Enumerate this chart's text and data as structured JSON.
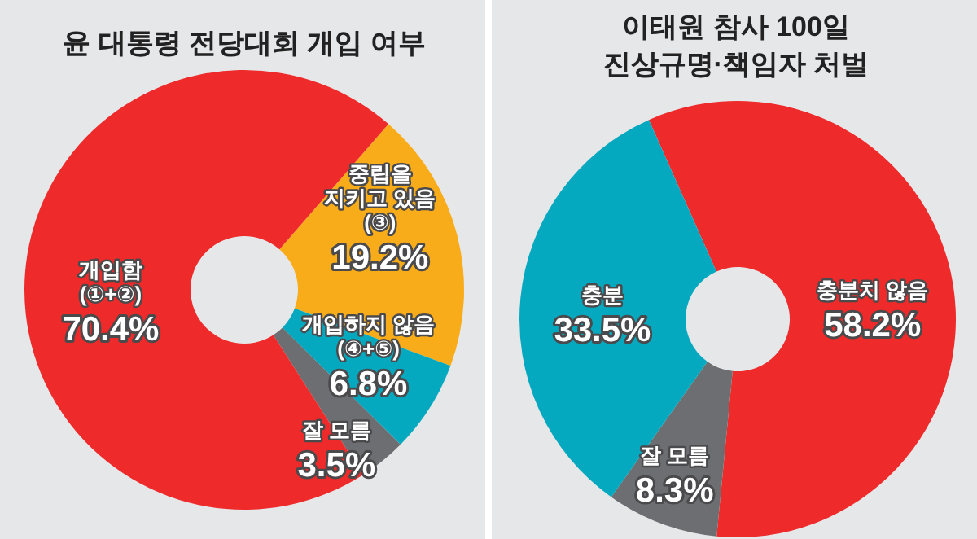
{
  "chart_data": [
    {
      "type": "donut",
      "title": "윤 대통령 전당대회 개입 여부",
      "categories": [
        "중립을\n지키고 있음\n(③)",
        "개입하지 않음\n(④+⑤)",
        "잘 모름",
        "개입함\n(①+②)"
      ],
      "values": [
        19.2,
        6.8,
        3.5,
        70.4
      ],
      "value_labels": [
        "19.2%",
        "6.8%",
        "3.5%",
        "70.4%"
      ],
      "colors": [
        "#f9ac1a",
        "#05a9bf",
        "#6d6e71",
        "#ee2a2a"
      ]
    },
    {
      "type": "donut",
      "title": "이태원 참사 100일\n진상규명·책임자 처벌",
      "categories": [
        "충분치 않음",
        "잘 모름",
        "충분"
      ],
      "values": [
        58.2,
        8.3,
        33.5
      ],
      "value_labels": [
        "58.2%",
        "8.3%",
        "33.5%"
      ],
      "colors": [
        "#ee2a2a",
        "#6d6e71",
        "#05a9bf"
      ]
    }
  ]
}
